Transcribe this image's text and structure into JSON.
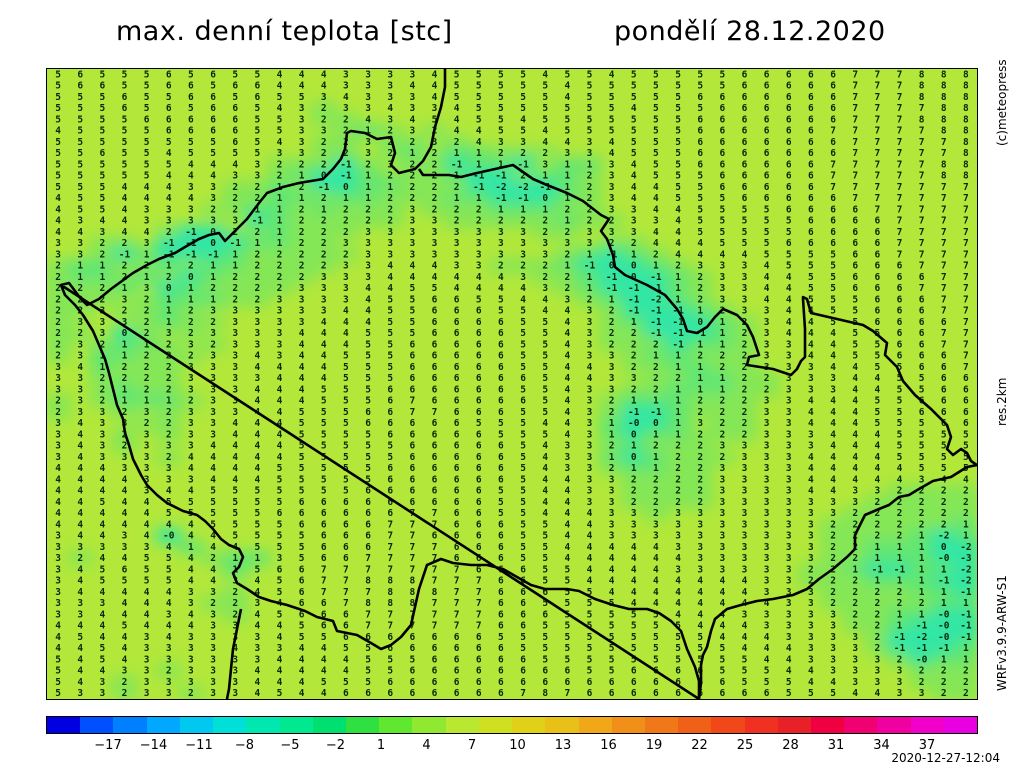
{
  "header": {
    "title": "max. denní teplota [stc]",
    "date": "pondělí 28.12.2020"
  },
  "side_labels": {
    "copyright": "(c)meteopress",
    "resolution": "res.2km",
    "model": "WRFv3.9.9-ARW-S1"
  },
  "legend": {
    "ticks": [
      "−17",
      "−14",
      "−11",
      "−8",
      "−5",
      "−2",
      "1",
      "4",
      "7",
      "10",
      "13",
      "16",
      "19",
      "22",
      "25",
      "28",
      "31",
      "34",
      "37"
    ],
    "colors": [
      "#0000e0",
      "#0050ff",
      "#0080ff",
      "#00a8ff",
      "#00c8f0",
      "#00e0d8",
      "#00e8b0",
      "#00e890",
      "#00e070",
      "#30e040",
      "#60e830",
      "#90e830",
      "#b8e830",
      "#d0e020",
      "#e0d018",
      "#e8c018",
      "#f0a818",
      "#f09018",
      "#f07818",
      "#f06018",
      "#f04818",
      "#f03020",
      "#e82028",
      "#f00040",
      "#f00070",
      "#f000a0",
      "#f000c8",
      "#e800e0"
    ]
  },
  "timestamp": "2020-12-27-12:04",
  "map": {
    "type": "temperature-grid-map",
    "region": "Czech Republic",
    "base_color": "#b3e83a",
    "cold_color": "#2ee6a8",
    "border_color": "#000000",
    "grid_rows": [
      "5 6 5 5 5 6 5 6 5 5 4 4 4 3 3 3 3 4 5 5 5 5 4 5 5 4 5 5 5 5 5 6 6 6 6 6 7 7 7 8 8 8",
      "5 6 6 5 5 6 6 5 6 6 4 4 4 3 3 3 4 4 5 5 5 5 5 4 5 5 5 5 5 5 5 6 6 6 6 6 7 7 7 8 8 8",
      "5 5 5 6 5 5 6 6 5 6 5 5 3 4 3 3 3 4 5 5 5 5 5 4 5 5 5 5 5 6 6 6 6 6 6 6 7 7 7 8 8 8",
      "5 5 5 6 5 6 5 6 6 5 4 3 2 3 3 4 3 3 4 5 5 5 5 5 5 5 4 5 5 5 6 6 6 6 6 6 7 7 7 7 8 8",
      "5 5 5 5 6 6 6 6 6 5 5 3 2 2 4 3 4 5 4 5 5 4 5 5 5 5 5 5 5 6 6 6 6 6 6 6 7 7 7 8 8 8",
      "4 5 5 5 5 6 6 6 6 5 5 3 3 2 1 2 3 2 4 4 5 5 4 5 5 5 5 5 5 6 6 6 6 6 6 7 7 7 7 7 8 8",
      "5 5 5 5 5 5 5 5 6 5 4 3 2 2 3 2 2 3 2 4 3 3 4 4 3 4 5 5 5 6 6 6 6 6 6 6 7 7 7 7 7 8",
      "5 5 6 5 5 4 5 5 5 5 3 3 2 2 3 2 1 2 1 1 2 2 2 3 3 4 5 5 5 6 6 6 6 6 6 6 7 7 7 7 7 8",
      "5 5 5 5 5 5 4 4 4 3 2 2 2 -1 2 3 2 2 -1 1 1 -1 3 1 1 3 4 5 5 6 6 6 6 6 6 7 7 7 7 7 8 8",
      "5 5 5 5 5 4 4 4 3 3 2 1 0 -1 1 2 2 2 1 -1 -1 2 1 1 2 3 4 5 5 5 6 6 6 6 6 7 7 7 7 7 8 8",
      "5 5 5 4 4 4 3 3 2 2 1 2 -1 0 1 1 2 2 2 -1 -2 -2 -1 1 2 3 4 4 5 5 6 6 6 6 6 7 7 7 7 7 7 7",
      "4 5 5 4 4 4 4 3 2 2 1 1 2 1 1 2 2 2 1 1 -1 -1 0 1 2 3 4 4 5 5 5 6 6 6 6 6 7 7 7 7 7 7",
      "4 5 5 4 3 3 3 2 2 1 1 2 1 2 2 2 3 2 2 2 1 1 1 2 2 3 3 4 4 5 5 5 5 6 6 6 6 7 7 7 7 7",
      "4 3 4 4 3 3 3 3 3 -1 1 2 2 2 2 2 3 3 2 2 2 2 2 1 2 2 3 3 4 5 5 5 5 5 6 6 6 6 7 7 7 7",
      "4 4 3 4 4 2 -1 0 2 2 1 2 2 2 3 3 3 3 3 3 3 3 2 2 3 3 3 4 4 5 5 5 5 5 6 6 6 6 7 7 7 7",
      "3 3 2 2 3 -1 -1 0 -1 1 1 2 2 3 3 3 3 3 3 3 3 3 3 3 3 2 2 4 4 4 5 5 5 6 6 6 6 6 7 7 7 7",
      "3 3 2 -1 1 -1 -1 -1 1 2 2 2 2 2 3 3 3 3 3 3 3 3 3 2 1 -1 1 2 4 4 4 4 5 5 5 5 6 6 7 7 7 7",
      "2 1 1 2 2 1 2 1 1 2 2 2 2 3 3 4 4 4 3 3 2 2 2 1 -1 0 0 1 2 3 3 3 4 5 5 5 6 6 6 7 7 7",
      "2 1 1 2 1 2 0 1 2 2 2 2 3 3 3 4 4 4 4 4 4 3 2 2 1 -1 0 -1 1 2 3 3 4 4 5 5 6 6 6 6 7 7",
      "2 2 2 1 3 0 1 2 2 2 2 3 3 3 4 4 5 5 4 4 4 4 3 2 1 -1 -1 -1 1 2 3 3 4 4 5 5 6 6 6 7 7 7",
      "2 2 2 3 2 1 1 1 2 2 3 3 3 3 4 5 5 6 6 5 5 4 4 3 2 1 -1 -2 1 2 3 3 4 4 5 5 5 6 6 6 7 7",
      "2 2 3 2 2 1 2 3 3 3 3 3 3 4 4 5 5 6 6 6 5 5 4 4 3 2 -1 -1 -1 1 2 3 3 4 4 5 5 6 6 6 7 7",
      "2 3 3 3 2 1 2 2 3 3 3 3 4 4 4 5 5 6 6 6 6 5 5 4 3 2 1 -1 -1 0 1 2 3 4 4 5 5 6 6 6 6 7",
      "2 2 3 0 2 3 2 3 3 3 3 4 4 4 5 5 5 6 6 6 6 5 5 4 3 2 2 -1 -1 -1 1 2 3 4 4 4 5 5 6 6 7 7",
      "2 3 2 1 1 2 3 2 3 3 3 4 4 4 5 5 6 6 6 6 6 5 5 4 3 2 2 2 -1 1 1 2 3 3 4 4 5 5 6 6 7 7",
      "2 3 1 1 2 2 2 3 3 4 3 4 4 5 5 5 6 6 6 6 6 5 5 4 3 3 2 1 1 2 2 2 3 3 4 4 5 5 6 6 6 7",
      "3 4 1 2 2 2 3 3 3 4 4 4 4 5 5 5 6 6 6 6 6 5 5 4 4 3 2 2 1 1 2 2 3 3 3 4 4 5 5 6 6 7",
      "3 3 2 2 2 2 3 3 3 3 4 4 4 5 5 5 6 6 6 6 6 6 5 4 4 3 3 2 2 1 1 2 2 3 3 3 4 4 5 5 6 6",
      "3 3 2 1 2 2 3 3 3 4 4 4 5 5 5 6 6 6 6 6 6 5 5 4 3 3 2 2 1 1 1 2 2 3 3 3 4 4 5 5 6 6",
      "2 3 2 1 1 1 2 3 3 4 4 4 5 5 5 6 7 6 6 6 6 6 5 4 3 2 1 1 1 2 2 2 3 3 4 4 4 5 5 6 6 6",
      "2 3 3 2 3 2 3 3 3 4 4 5 5 5 6 6 7 7 6 6 6 5 5 4 3 2 -1 -1 1 2 2 2 3 3 4 4 4 5 5 6 6 6",
      "3 4 3 3 2 2 3 3 4 4 4 5 5 5 6 6 6 6 6 5 5 5 4 4 3 1 -0 0 1 3 2 2 3 3 4 4 4 5 5 5 6 6",
      "3 4 3 2 3 2 3 3 4 4 4 5 5 5 5 6 6 6 6 6 5 5 5 4 3 1 0 1 1 2 2 2 3 3 3 4 4 4 5 5 5 5",
      "3 4 3 2 3 3 3 4 4 4 4 5 5 5 5 5 6 6 6 6 6 5 4 3 3 2 1 2 2 2 3 3 3 3 3 4 4 4 5 5 5 5",
      "3 4 3 3 3 2 4 4 4 4 4 5 5 5 5 5 6 6 6 6 6 5 4 3 3 1 0 1 2 2 2 3 3 3 4 4 4 4 5 5 5 5",
      "4 4 4 3 3 3 4 4 4 4 5 5 5 5 5 6 6 6 6 6 6 5 4 3 3 2 1 1 2 2 3 3 3 3 4 4 4 4 4 5 5 5",
      "4 4 4 4 3 3 3 4 4 4 5 5 5 5 5 6 6 6 6 6 6 5 4 4 3 3 2 2 2 2 3 3 3 3 4 4 4 4 4 3 4 4",
      "4 4 4 4 3 4 4 5 5 5 5 5 5 5 6 6 6 6 6 6 5 5 4 4 3 3 2 2 2 2 3 3 3 3 4 4 3 3 2 2 2 2",
      "4 4 5 4 4 5 5 5 5 5 5 6 6 6 6 6 6 6 6 6 5 5 4 4 3 3 2 2 2 2 3 3 3 3 3 3 3 2 2 2 2 2",
      "4 4 4 4 4 5 5 5 5 5 6 6 6 6 6 6 7 7 6 6 5 5 4 4 4 3 3 2 3 3 3 3 3 3 3 3 2 2 2 2 2 2",
      "4 4 4 4 4 4 4 5 5 5 5 6 6 6 6 7 7 7 6 6 6 5 5 4 4 3 3 3 3 3 3 3 3 3 3 2 2 2 2 2 2 1",
      "3 4 4 3 4 -0 4 4 5 5 5 5 6 6 6 7 7 6 6 6 6 5 5 4 4 3 3 3 3 3 3 3 3 3 3 2 2 2 2 1 -2 1",
      "3 3 3 3 3 4 1 4 4 5 5 5 6 6 6 7 7 7 6 6 6 5 5 4 4 4 4 4 3 3 3 3 3 3 3 2 2 1 1 1 0 -2",
      "3 2 4 4 5 5 4 2 1 1 3 5 6 6 7 7 7 7 6 6 6 5 5 4 4 4 4 4 4 3 3 3 3 3 3 2 2 1 1 1 -0 -3",
      "3 4 5 6 5 5 4 4 1 5 6 6 7 7 7 7 7 7 7 6 6 6 5 5 4 4 4 4 3 3 3 3 3 3 2 2 1 -1 -1 1 1 -2",
      "3 4 5 5 5 5 4 4 3 4 5 6 7 7 8 8 8 7 7 7 6 6 5 5 4 4 4 4 4 4 4 4 3 3 2 2 2 1 1 1 -1 -2",
      "3 4 4 4 4 4 3 3 2 4 5 6 7 7 7 8 8 8 7 7 6 6 6 5 5 4 4 4 4 4 4 4 3 3 3 2 2 2 2 1 1 -1",
      "3 3 3 4 4 4 3 2 2 3 4 6 6 7 8 8 8 7 7 7 6 6 5 5 5 5 4 4 4 4 4 4 4 3 3 2 2 2 2 2 1 1",
      "3 3 4 4 4 3 4 3 2 4 5 6 6 6 7 7 7 7 7 7 6 6 6 5 5 5 5 5 4 4 4 3 3 3 3 3 2 2 1 1 -0 -1",
      "4 4 4 5 4 4 4 3 3 4 4 5 6 6 7 7 7 7 7 7 6 6 5 5 5 5 5 5 5 4 4 4 3 3 3 3 2 2 1 -1 -0 -1",
      "4 5 4 4 3 4 3 3 3 3 4 5 5 6 6 6 6 6 6 6 5 5 5 5 5 5 5 5 5 5 4 4 4 3 3 3 3 2 -1 -2 -0 -1",
      "4 4 5 4 3 3 3 3 4 3 3 4 4 5 5 6 6 6 6 6 6 5 5 5 5 5 5 5 5 5 5 4 4 4 3 3 3 2 -1 -1 -1 1",
      "5 4 5 4 3 3 3 3 3 3 4 4 4 4 5 5 5 6 6 6 6 6 5 5 5 5 5 5 5 5 5 5 4 4 3 3 3 3 2 -0 1 1",
      "5 4 4 3 3 2 3 3 3 4 4 4 4 4 5 5 6 6 6 6 6 6 6 6 5 5 6 6 6 6 5 5 5 4 4 3 3 3 3 2 2 2",
      "5 4 3 2 3 3 3 3 3 4 4 4 5 5 5 6 6 6 6 6 6 6 6 6 6 6 6 6 6 6 6 5 5 5 4 4 3 3 3 2 2 2",
      "5 3 3 2 3 3 2 3 3 4 5 4 4 6 6 6 6 6 6 6 6 7 8 7 6 6 6 6 6 6 6 6 6 5 5 5 4 4 3 3 2 2"
    ],
    "border_path_px": ""
  }
}
